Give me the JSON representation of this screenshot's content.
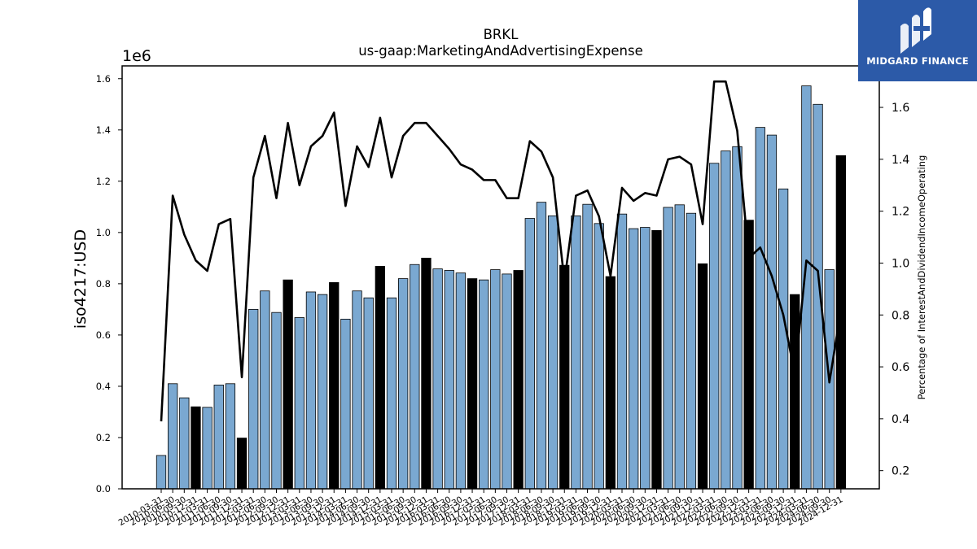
{
  "chart_data": {
    "type": "bar",
    "title": "BRKL",
    "subtitle": "us-gaap:MarketingAndAdvertisingExpense",
    "ylabel": "iso4217:USD",
    "y_multiplier_label": "1e6",
    "y2label": "Percentage of InterestAndDividendIncomeOperating",
    "ylim": [
      0,
      1650000
    ],
    "y2lim": [
      0.13,
      1.76
    ],
    "yticks": [
      "0.0",
      "0.2",
      "0.4",
      "0.6",
      "0.8",
      "1.0",
      "1.2",
      "1.4",
      "1.6"
    ],
    "y2ticks": [
      "0.2",
      "0.4",
      "0.6",
      "0.8",
      "1.0",
      "1.2",
      "1.4",
      "1.6"
    ],
    "categories": [
      "2010-03-31",
      "2010-06-30",
      "2010-09-30",
      "2010-12-31",
      "2011-03-31",
      "2011-06-30",
      "2011-09-30",
      "2011-12-31",
      "2012-03-31",
      "2012-06-30",
      "2012-09-30",
      "2012-12-31",
      "2013-03-31",
      "2013-06-30",
      "2013-09-30",
      "2013-12-31",
      "2014-03-31",
      "2014-06-30",
      "2014-09-30",
      "2014-12-31",
      "2015-03-31",
      "2015-06-30",
      "2015-09-30",
      "2015-12-31",
      "2016-03-31",
      "2016-06-30",
      "2016-09-30",
      "2016-12-31",
      "2017-03-31",
      "2017-06-30",
      "2017-09-30",
      "2017-12-31",
      "2018-03-31",
      "2018-06-30",
      "2018-09-30",
      "2018-12-31",
      "2019-03-31",
      "2019-06-30",
      "2019-09-30",
      "2019-12-31",
      "2020-03-31",
      "2020-06-30",
      "2020-09-30",
      "2020-12-31",
      "2021-03-31",
      "2021-06-30",
      "2021-09-30",
      "2021-12-31",
      "2022-03-31",
      "2022-06-30",
      "2022-09-30",
      "2022-12-31",
      "2023-03-31",
      "2023-06-30",
      "2023-09-30",
      "2023-12-31",
      "2024-03-31",
      "2024-06-30",
      "2024-09-30",
      "2024-12-31"
    ],
    "series": [
      {
        "kind": "bar",
        "values": [
          130000,
          410000,
          355000,
          320000,
          318000,
          405000,
          410000,
          198000,
          700000,
          772000,
          688000,
          815000,
          668000,
          768000,
          758000,
          805000,
          662000,
          772000,
          745000,
          868000,
          745000,
          820000,
          875000,
          900000,
          858000,
          852000,
          842000,
          820000,
          815000,
          855000,
          838000,
          852000,
          1055000,
          1118000,
          1065000,
          872000,
          1065000,
          1110000,
          1035000,
          828000,
          1072000,
          1015000,
          1020000,
          1008000,
          1098000,
          1108000,
          1075000,
          878000,
          1270000,
          1318000,
          1335000,
          1048000,
          1410000,
          1380000,
          1170000,
          758000,
          1572000,
          1500000,
          855000,
          1300000
        ],
        "colors_by_quarter": {
          "Q1": "#7aa8d1",
          "Q2": "#7aa8d1",
          "Q3": "#7aa8d1",
          "Q4": "#000000"
        }
      },
      {
        "kind": "line",
        "color": "#000000",
        "values": [
          0.39,
          1.26,
          1.11,
          1.01,
          0.97,
          1.15,
          1.17,
          0.56,
          1.33,
          1.49,
          1.25,
          1.54,
          1.3,
          1.45,
          1.49,
          1.58,
          1.22,
          1.45,
          1.37,
          1.56,
          1.33,
          1.49,
          1.54,
          1.54,
          1.49,
          1.44,
          1.38,
          1.36,
          1.32,
          1.32,
          1.25,
          1.25,
          1.47,
          1.43,
          1.33,
          0.93,
          1.26,
          1.28,
          1.18,
          0.95,
          1.29,
          1.24,
          1.27,
          1.26,
          1.4,
          1.41,
          1.38,
          1.15,
          1.7,
          1.7,
          1.51,
          1.02,
          1.06,
          0.95,
          0.8,
          0.57,
          1.01,
          0.97,
          0.54,
          0.82
        ]
      }
    ],
    "grid": false
  },
  "logo": {
    "text": "MIDGARD FINANCE",
    "background": "#2c5aa8"
  }
}
